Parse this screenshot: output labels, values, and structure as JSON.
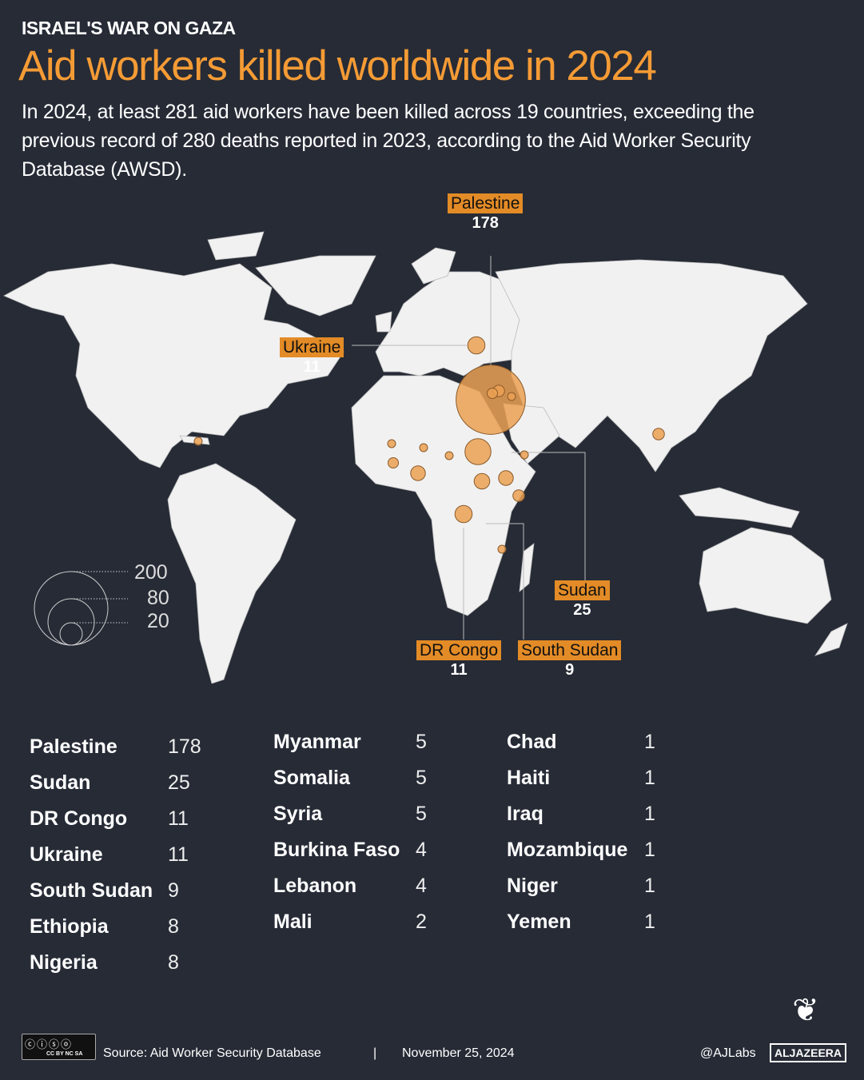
{
  "header": {
    "kicker": "ISRAEL'S WAR ON GAZA",
    "title": "Aid workers killed worldwide in 2024",
    "subtitle": "In 2024, at least 281 aid workers have been killed across 19 countries, exceeding the previous record of 280 deaths reported in 2023, according to the Aid Worker Security Database (AWSD)."
  },
  "colors": {
    "accent": "#f59b35",
    "bubble": "#eba154",
    "label_bg": "#e38b26",
    "background": "#262b36",
    "land": "#f1f1f1"
  },
  "map_labels": [
    {
      "name": "Palestine",
      "value": "178"
    },
    {
      "name": "Ukraine",
      "value": "11"
    },
    {
      "name": "Sudan",
      "value": "25"
    },
    {
      "name": "DR Congo",
      "value": "11"
    },
    {
      "name": "South Sudan",
      "value": "9"
    }
  ],
  "size_legend": [
    "200",
    "80",
    "20"
  ],
  "chart_data": {
    "type": "bubble-map",
    "countries": [
      {
        "name": "Palestine",
        "value": 178
      },
      {
        "name": "Sudan",
        "value": 25
      },
      {
        "name": "DR Congo",
        "value": 11
      },
      {
        "name": "Ukraine",
        "value": 11
      },
      {
        "name": "South Sudan",
        "value": 9
      },
      {
        "name": "Ethiopia",
        "value": 8
      },
      {
        "name": "Nigeria",
        "value": 8
      },
      {
        "name": "Myanmar",
        "value": 5
      },
      {
        "name": "Somalia",
        "value": 5
      },
      {
        "name": "Syria",
        "value": 5
      },
      {
        "name": "Burkina Faso",
        "value": 4
      },
      {
        "name": "Lebanon",
        "value": 4
      },
      {
        "name": "Mali",
        "value": 2
      },
      {
        "name": "Chad",
        "value": 1
      },
      {
        "name": "Haiti",
        "value": 1
      },
      {
        "name": "Iraq",
        "value": 1
      },
      {
        "name": "Mozambique",
        "value": 1
      },
      {
        "name": "Niger",
        "value": 1
      },
      {
        "name": "Yemen",
        "value": 1
      }
    ]
  },
  "footer": {
    "license": "CC BY NC SA",
    "source": "Source:  Aid Worker Security Database",
    "separator": "|",
    "date": "November 25, 2024",
    "handle": "@AJLabs",
    "brand": "ALJAZEERA"
  }
}
